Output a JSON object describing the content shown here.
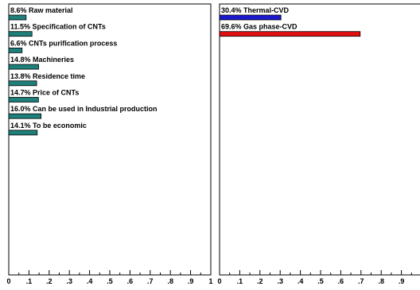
{
  "chart_data": [
    {
      "type": "bar",
      "orientation": "horizontal",
      "xlim": [
        0,
        1
      ],
      "ticks": [
        "0",
        ".1",
        ".2",
        ".3",
        ".4",
        ".5",
        ".6",
        ".7",
        ".8",
        ".9",
        "1"
      ],
      "grid": false,
      "bar_color": "#1f7f7a",
      "categories": [
        "8.6% Raw material",
        "11.5% Specification of CNTs",
        "6.6% CNTs purification process",
        "14.8% Machineries",
        "13.8% Residence time",
        "14.7% Price of CNTs",
        "16.0% Can be used in Industrial production",
        "14.1% To be economic"
      ],
      "values": [
        0.086,
        0.115,
        0.066,
        0.148,
        0.138,
        0.147,
        0.16,
        0.141
      ]
    },
    {
      "type": "bar",
      "orientation": "horizontal",
      "xlim": [
        0,
        1
      ],
      "ticks": [
        "0",
        ".1",
        ".2",
        ".3",
        ".4",
        ".5",
        ".6",
        ".7",
        ".8",
        ".9"
      ],
      "grid": false,
      "categories": [
        "30.4% Thermal-CVD",
        "69.6% Gas phase-CVD"
      ],
      "values": [
        0.304,
        0.696
      ],
      "colors": [
        "#1a1acc",
        "#e01010"
      ]
    }
  ]
}
